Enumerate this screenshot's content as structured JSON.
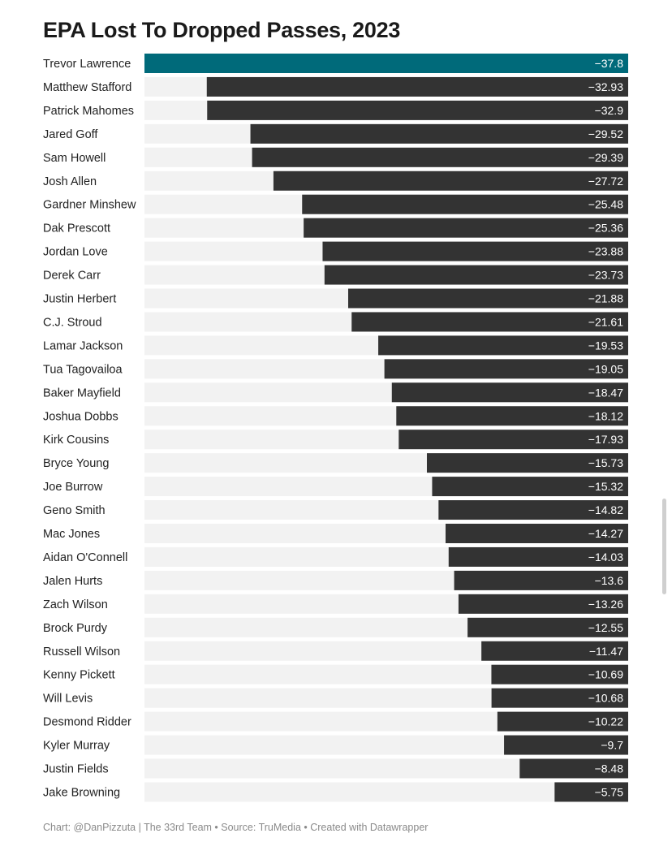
{
  "colors": {
    "highlight": "#006a7a",
    "bar": "#333333",
    "track": "#f2f2f2",
    "value_text": "#ffffff",
    "label_text": "#222222",
    "footer_text": "#8a8a8a"
  },
  "footer": "Chart: @DanPizzuta | The 33rd Team • Source: TruMedia • Created with Datawrapper",
  "chart_data": {
    "type": "bar",
    "orientation": "horizontal",
    "title": "EPA Lost To Dropped Passes, 2023",
    "xlabel": "",
    "ylabel": "",
    "xlim": [
      -37.8,
      0
    ],
    "highlight_category": "Trevor Lawrence",
    "categories": [
      "Trevor Lawrence",
      "Matthew Stafford",
      "Patrick Mahomes",
      "Jared Goff",
      "Sam Howell",
      "Josh Allen",
      "Gardner Minshew",
      "Dak Prescott",
      "Jordan Love",
      "Derek Carr",
      "Justin Herbert",
      "C.J. Stroud",
      "Lamar Jackson",
      "Tua Tagovailoa",
      "Baker Mayfield",
      "Joshua Dobbs",
      "Kirk Cousins",
      "Bryce Young",
      "Joe Burrow",
      "Geno Smith",
      "Mac Jones",
      "Aidan O'Connell",
      "Jalen Hurts",
      "Zach Wilson",
      "Brock Purdy",
      "Russell Wilson",
      "Kenny Pickett",
      "Will Levis",
      "Desmond Ridder",
      "Kyler Murray",
      "Justin Fields",
      "Jake Browning"
    ],
    "values": [
      -37.8,
      -32.93,
      -32.9,
      -29.52,
      -29.39,
      -27.72,
      -25.48,
      -25.36,
      -23.88,
      -23.73,
      -21.88,
      -21.61,
      -19.53,
      -19.05,
      -18.47,
      -18.12,
      -17.93,
      -15.73,
      -15.32,
      -14.82,
      -14.27,
      -14.03,
      -13.6,
      -13.26,
      -12.55,
      -11.47,
      -10.69,
      -10.68,
      -10.22,
      -9.7,
      -8.48,
      -5.75
    ],
    "value_labels": [
      "−37.8",
      "−32.93",
      "−32.9",
      "−29.52",
      "−29.39",
      "−27.72",
      "−25.48",
      "−25.36",
      "−23.88",
      "−23.73",
      "−21.88",
      "−21.61",
      "−19.53",
      "−19.05",
      "−18.47",
      "−18.12",
      "−17.93",
      "−15.73",
      "−15.32",
      "−14.82",
      "−14.27",
      "−14.03",
      "−13.6",
      "−13.26",
      "−12.55",
      "−11.47",
      "−10.69",
      "−10.68",
      "−10.22",
      "−9.7",
      "−8.48",
      "−5.75"
    ]
  }
}
